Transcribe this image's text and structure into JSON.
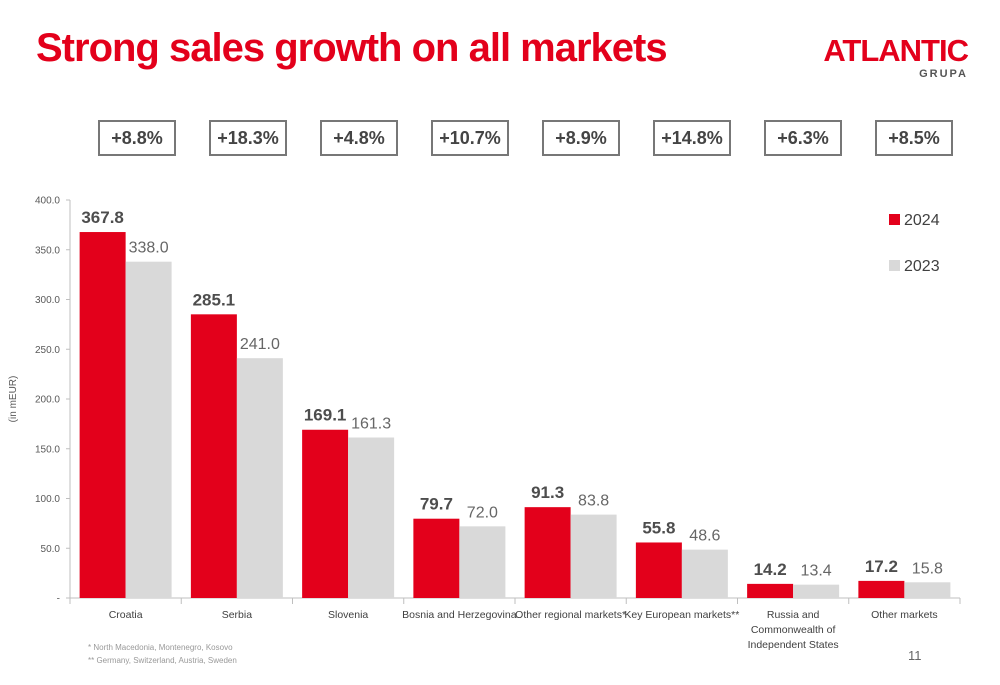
{
  "slide": {
    "title": "Strong sales growth on all markets",
    "page_number": "11"
  },
  "logo": {
    "main": "ATLANTIC",
    "sub": "GRUPA",
    "color": "#e3001b"
  },
  "growth_labels": [
    "+8.8%",
    "+18.3%",
    "+4.8%",
    "+10.7%",
    "+8.9%",
    "+14.8%",
    "+6.3%",
    "+8.5%"
  ],
  "footnotes": [
    "* North Macedonia, Montenegro, Kosovo",
    "** Germany, Switzerland, Austria, Sweden"
  ],
  "chart_data": {
    "type": "bar",
    "ylabel": "(in mEUR)",
    "ylim": [
      0,
      400
    ],
    "yticks": [
      0,
      50,
      100,
      150,
      200,
      250,
      300,
      350,
      400
    ],
    "ytick_labels": [
      "-",
      "50.0",
      "100.0",
      "150.0",
      "200.0",
      "250.0",
      "300.0",
      "350.0",
      "400.0"
    ],
    "grid": false,
    "legend_position": "top-right",
    "categories": [
      [
        "Croatia"
      ],
      [
        "Serbia"
      ],
      [
        "Slovenia"
      ],
      [
        "Bosnia and Herzegovina"
      ],
      [
        "Other regional markets*"
      ],
      [
        "Key European markets**"
      ],
      [
        "Russia and",
        "Commonwealth of",
        "Independent States"
      ],
      [
        "Other markets"
      ]
    ],
    "series": [
      {
        "name": "2024",
        "color": "#e3001b",
        "values": [
          367.8,
          285.1,
          169.1,
          79.7,
          91.3,
          55.8,
          14.2,
          17.2
        ],
        "labels": [
          "367.8",
          "285.1",
          "169.1",
          "79.7",
          "91.3",
          "55.8",
          "14.2",
          "17.2"
        ]
      },
      {
        "name": "2023",
        "color": "#d9d9d9",
        "values": [
          338.0,
          241.0,
          161.3,
          72.0,
          83.8,
          48.6,
          13.4,
          15.8
        ],
        "labels": [
          "338.0",
          "241.0",
          "161.3",
          "72.0",
          "83.8",
          "48.6",
          "13.4",
          "15.8"
        ]
      }
    ]
  }
}
